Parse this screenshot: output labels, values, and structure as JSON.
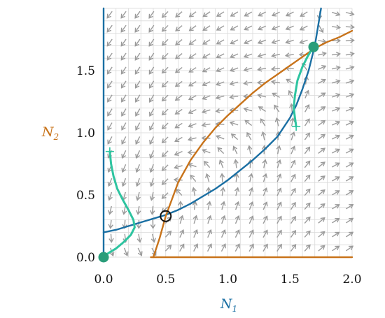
{
  "chart_data": {
    "type": "line",
    "subtype": "phase-portrait",
    "title": "",
    "xlabel": {
      "main": "N",
      "sub": "1"
    },
    "ylabel": {
      "main": "N",
      "sub": "2"
    },
    "xlim": [
      0,
      2.0
    ],
    "ylim": [
      0,
      2.0
    ],
    "x_ticks": [
      "0.0",
      "0.5",
      "1.0",
      "1.5",
      "2.0"
    ],
    "y_ticks": [
      "0.0",
      "0.5",
      "1.0",
      "1.5"
    ],
    "grid": true,
    "colors": {
      "n1_nullcline": "#1a6fa3",
      "n2_nullcline": "#c8731a",
      "trajectory": "#2ec4a0",
      "fixed_point": "#2a9d7a",
      "vector_field": "#9b9b9b",
      "grid": "#d9d9d9"
    },
    "series": [
      {
        "role": "n1-nullcline",
        "color": "#1a6fa3",
        "x": [
          0.0,
          0.1,
          0.2,
          0.3,
          0.4,
          0.5,
          0.6,
          0.7,
          0.8,
          0.9,
          1.0,
          1.1,
          1.2,
          1.3,
          1.4,
          1.5,
          1.55,
          1.6,
          1.65,
          1.7,
          1.72,
          1.75
        ],
        "y": [
          0.2,
          0.22,
          0.25,
          0.28,
          0.31,
          0.34,
          0.38,
          0.43,
          0.49,
          0.55,
          0.62,
          0.7,
          0.78,
          0.87,
          0.97,
          1.12,
          1.22,
          1.35,
          1.5,
          1.7,
          1.82,
          2.0
        ]
      },
      {
        "role": "n1-axis-nullcline",
        "color": "#1a6fa3",
        "x": [
          0.0,
          0.0
        ],
        "y": [
          0.0,
          2.0
        ]
      },
      {
        "role": "n2-nullcline",
        "color": "#c8731a",
        "x": [
          0.4,
          0.42,
          0.45,
          0.5,
          0.6,
          0.7,
          0.8,
          0.9,
          1.0,
          1.1,
          1.2,
          1.3,
          1.4,
          1.5,
          1.6,
          1.7,
          1.8,
          1.9,
          2.0
        ],
        "y": [
          0.0,
          0.06,
          0.15,
          0.33,
          0.6,
          0.78,
          0.92,
          1.04,
          1.14,
          1.23,
          1.32,
          1.4,
          1.47,
          1.54,
          1.61,
          1.68,
          1.73,
          1.77,
          1.82
        ]
      },
      {
        "role": "n2-axis-nullcline",
        "color": "#c8731a",
        "x": [
          0.38,
          2.0
        ],
        "y": [
          0.0,
          0.0
        ]
      },
      {
        "role": "trajectory-1",
        "color": "#2ec4a0",
        "x": [
          0.05,
          0.06,
          0.08,
          0.11,
          0.15,
          0.2,
          0.24,
          0.25,
          0.22,
          0.16,
          0.1,
          0.05,
          0.02,
          0.0
        ],
        "y": [
          0.85,
          0.75,
          0.65,
          0.55,
          0.47,
          0.38,
          0.3,
          0.24,
          0.18,
          0.12,
          0.07,
          0.04,
          0.02,
          0.0
        ]
      },
      {
        "role": "trajectory-2",
        "color": "#2ec4a0",
        "x": [
          1.55,
          1.54,
          1.53,
          1.54,
          1.56,
          1.6,
          1.64,
          1.67,
          1.69
        ],
        "y": [
          1.05,
          1.12,
          1.2,
          1.3,
          1.42,
          1.53,
          1.61,
          1.66,
          1.69
        ]
      }
    ],
    "fixed_points": [
      {
        "x": 0.0,
        "y": 0.0,
        "kind": "stable"
      },
      {
        "x": 1.69,
        "y": 1.69,
        "kind": "stable"
      },
      {
        "x": 0.5,
        "y": 0.33,
        "kind": "unstable"
      }
    ],
    "trajectory_starts": [
      {
        "x": 0.05,
        "y": 0.85
      },
      {
        "x": 1.55,
        "y": 1.05
      }
    ]
  }
}
